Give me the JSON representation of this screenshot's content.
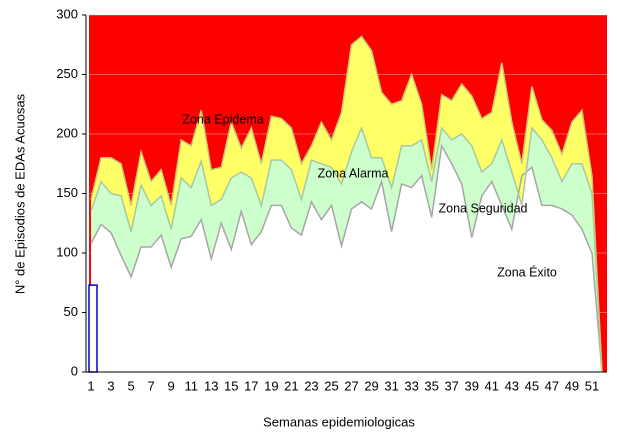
{
  "chart_data": {
    "type": "area",
    "x_label": "Semanas  epidemiologicas",
    "y_label": "N° de Episodios de EDAs Acuosas",
    "categories": [
      1,
      null,
      3,
      null,
      5,
      null,
      7,
      null,
      9,
      null,
      11,
      null,
      13,
      null,
      15,
      null,
      17,
      null,
      19,
      null,
      21,
      null,
      23,
      null,
      25,
      null,
      27,
      null,
      29,
      null,
      31,
      null,
      33,
      null,
      35,
      null,
      37,
      null,
      39,
      null,
      41,
      null,
      43,
      null,
      45,
      null,
      47,
      null,
      49,
      null,
      51,
      null
    ],
    "ylim": [
      0,
      300
    ],
    "yticks": [
      0,
      50,
      100,
      150,
      200,
      250,
      300
    ],
    "background_color": "#ff0000",
    "series": [
      {
        "name": "Zona Éxito",
        "color": "#ffffff",
        "line_color": "#a6a6a6",
        "values": [
          108,
          124,
          117,
          98,
          80,
          105,
          105,
          115,
          88,
          112,
          114,
          128,
          95,
          125,
          103,
          135,
          107,
          118,
          140,
          140,
          121,
          115,
          143,
          128,
          140,
          106,
          137,
          143,
          137,
          160,
          118,
          158,
          155,
          165,
          130,
          190,
          175,
          158,
          113,
          148,
          160,
          140,
          120,
          165,
          172,
          140,
          140,
          137,
          132,
          120,
          100,
          0
        ]
      },
      {
        "name": "Zona Seguridad",
        "color": "#ccffcc",
        "line_color": "#a6c8a6",
        "values": [
          135,
          160,
          150,
          148,
          118,
          157,
          140,
          148,
          120,
          163,
          155,
          177,
          140,
          145,
          163,
          168,
          163,
          140,
          178,
          178,
          170,
          145,
          178,
          175,
          172,
          158,
          185,
          205,
          180,
          180,
          155,
          190,
          190,
          195,
          160,
          205,
          195,
          200,
          190,
          168,
          175,
          195,
          168,
          140,
          205,
          195,
          180,
          160,
          175,
          175,
          150,
          0
        ]
      },
      {
        "name": "Zona Alarma",
        "color": "#ffff66",
        "line_color": "#c8c87a",
        "values": [
          145,
          180,
          180,
          175,
          140,
          185,
          160,
          170,
          140,
          195,
          190,
          220,
          170,
          172,
          210,
          188,
          205,
          175,
          215,
          213,
          205,
          175,
          190,
          210,
          195,
          218,
          275,
          282,
          270,
          235,
          225,
          228,
          250,
          225,
          170,
          233,
          228,
          242,
          232,
          213,
          218,
          260,
          210,
          175,
          240,
          212,
          203,
          183,
          210,
          220,
          165,
          0
        ]
      }
    ],
    "bar": {
      "color": "#0000cc",
      "values": [
        73
      ]
    },
    "annotations": [
      "Zona Epidema",
      "Zona Alarma",
      "Zona Seguridad",
      "Zona Éxito"
    ]
  }
}
